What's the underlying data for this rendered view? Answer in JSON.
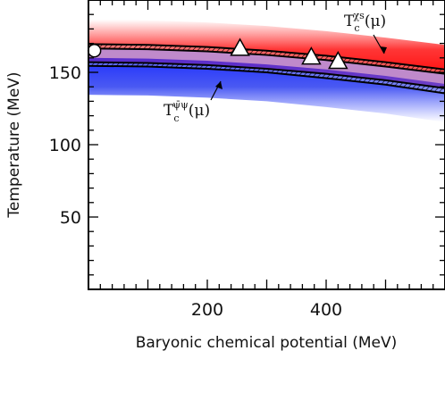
{
  "chart_data": {
    "type": "line",
    "xlabel": "Baryonic chemical potential (MeV)",
    "ylabel": "Temperature (MeV)",
    "xlim": [
      0,
      600
    ],
    "ylim": [
      0,
      200
    ],
    "x_ticks": [
      200,
      400
    ],
    "y_ticks": [
      50,
      100,
      150
    ],
    "grid": false,
    "series": [
      {
        "name": "T_c^{χs}(μ)",
        "color": "#e8000b",
        "x": [
          0,
          100,
          200,
          300,
          400,
          500,
          600
        ],
        "y_upper": [
          169.5,
          169,
          167.5,
          165,
          161.5,
          157,
          152
        ],
        "y_lower": [
          166.5,
          166,
          164.5,
          162,
          158.5,
          154,
          149
        ]
      },
      {
        "name": "T_c^{ψ̄ψ}(μ)",
        "color": "#1f3fd8",
        "x": [
          0,
          100,
          200,
          300,
          400,
          500,
          600
        ],
        "y_upper": [
          157,
          156.5,
          155,
          152.5,
          149,
          144.5,
          139
        ],
        "y_lower": [
          154.5,
          154,
          152.5,
          150,
          146,
          141.5,
          135.5
        ]
      }
    ],
    "markers": [
      {
        "shape": "circle",
        "x": 10,
        "y": 165
      },
      {
        "shape": "triangle",
        "x": 255,
        "y": 166
      },
      {
        "shape": "triangle",
        "x": 375,
        "y": 160
      },
      {
        "shape": "triangle",
        "x": 420,
        "y": 157
      }
    ],
    "annotations": [
      {
        "main": "T",
        "sub": "c",
        "sup": "χs",
        "tail": "(μ)"
      },
      {
        "main": "T",
        "sub": "c",
        "sup": "ψ̄ψ",
        "tail": "(μ)"
      }
    ]
  }
}
